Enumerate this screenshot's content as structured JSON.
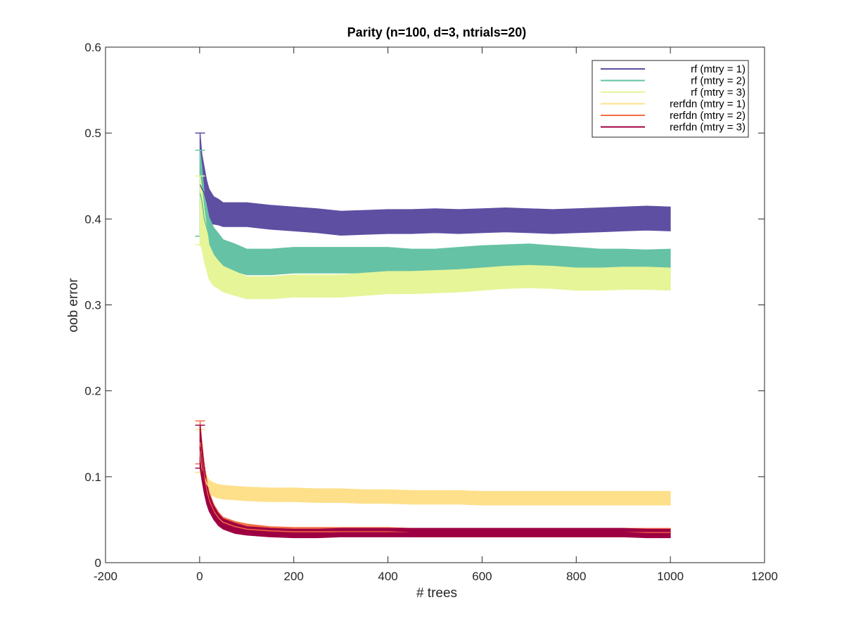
{
  "chart_data": {
    "type": "line",
    "title": "Parity (n=100, d=3, ntrials=20)",
    "xlabel": "# trees",
    "ylabel": "oob error",
    "xlim": [
      -200,
      1200
    ],
    "ylim": [
      0,
      0.6
    ],
    "xticks": [
      -200,
      0,
      200,
      400,
      600,
      800,
      1000,
      1200
    ],
    "xtick_labels": [
      "-200",
      "0",
      "200",
      "400",
      "600",
      "800",
      "1000",
      "1200"
    ],
    "yticks": [
      0,
      0.1,
      0.2,
      0.3,
      0.4,
      0.5,
      0.6
    ],
    "ytick_labels": [
      "0",
      "0.1",
      "0.2",
      "0.3",
      "0.4",
      "0.5",
      "0.6"
    ],
    "grid": false,
    "legend_position": "top-right",
    "error_bars": true,
    "series": [
      {
        "name": "rf (mtry = 1)",
        "color": "#5e4fa2",
        "x": [
          1,
          5,
          10,
          15,
          20,
          30,
          40,
          50,
          75,
          100,
          150,
          200,
          250,
          300,
          350,
          400,
          450,
          500,
          550,
          600,
          650,
          700,
          750,
          800,
          850,
          900,
          950,
          1000
        ],
        "mean": [
          0.44,
          0.435,
          0.43,
          0.42,
          0.415,
          0.41,
          0.408,
          0.405,
          0.405,
          0.405,
          0.402,
          0.4,
          0.398,
          0.395,
          0.396,
          0.397,
          0.397,
          0.398,
          0.397,
          0.398,
          0.399,
          0.398,
          0.397,
          0.398,
          0.399,
          0.4,
          0.401,
          0.4
        ],
        "err": [
          0.06,
          0.04,
          0.03,
          0.025,
          0.02,
          0.016,
          0.015,
          0.014,
          0.014,
          0.014,
          0.014,
          0.014,
          0.014,
          0.014,
          0.014,
          0.014,
          0.014,
          0.014,
          0.014,
          0.014,
          0.014,
          0.014,
          0.014,
          0.014,
          0.014,
          0.014,
          0.014,
          0.014
        ]
      },
      {
        "name": "rf (mtry = 2)",
        "color": "#66c2a5",
        "x": [
          1,
          5,
          10,
          15,
          20,
          30,
          40,
          50,
          75,
          100,
          150,
          200,
          250,
          300,
          350,
          400,
          450,
          500,
          550,
          600,
          650,
          700,
          750,
          800,
          850,
          900,
          950,
          1000
        ],
        "mean": [
          0.43,
          0.42,
          0.4,
          0.39,
          0.38,
          0.37,
          0.365,
          0.36,
          0.355,
          0.35,
          0.35,
          0.352,
          0.352,
          0.352,
          0.352,
          0.352,
          0.35,
          0.35,
          0.352,
          0.354,
          0.355,
          0.356,
          0.354,
          0.352,
          0.35,
          0.35,
          0.349,
          0.35
        ],
        "err": [
          0.05,
          0.04,
          0.03,
          0.025,
          0.022,
          0.02,
          0.018,
          0.016,
          0.016,
          0.015,
          0.015,
          0.015,
          0.015,
          0.015,
          0.015,
          0.015,
          0.015,
          0.015,
          0.015,
          0.015,
          0.015,
          0.015,
          0.015,
          0.015,
          0.015,
          0.015,
          0.015,
          0.015
        ]
      },
      {
        "name": "rf (mtry = 3)",
        "color": "#e6f598",
        "x": [
          1,
          5,
          10,
          15,
          20,
          30,
          40,
          50,
          75,
          100,
          150,
          200,
          250,
          300,
          350,
          400,
          450,
          500,
          550,
          600,
          650,
          700,
          750,
          800,
          850,
          900,
          950,
          1000
        ],
        "mean": [
          0.41,
          0.4,
          0.38,
          0.365,
          0.35,
          0.34,
          0.335,
          0.33,
          0.325,
          0.32,
          0.32,
          0.322,
          0.322,
          0.322,
          0.324,
          0.326,
          0.326,
          0.327,
          0.328,
          0.33,
          0.332,
          0.333,
          0.332,
          0.33,
          0.33,
          0.331,
          0.331,
          0.33
        ],
        "err": [
          0.04,
          0.035,
          0.03,
          0.025,
          0.02,
          0.018,
          0.016,
          0.015,
          0.014,
          0.013,
          0.013,
          0.013,
          0.013,
          0.013,
          0.013,
          0.013,
          0.013,
          0.013,
          0.013,
          0.013,
          0.013,
          0.013,
          0.013,
          0.013,
          0.013,
          0.013,
          0.013,
          0.013
        ]
      },
      {
        "name": "rerfdn (mtry = 1)",
        "color": "#fee08b",
        "x": [
          1,
          5,
          10,
          15,
          20,
          30,
          40,
          50,
          75,
          100,
          150,
          200,
          250,
          300,
          350,
          400,
          450,
          500,
          550,
          600,
          650,
          700,
          750,
          800,
          850,
          900,
          950,
          1000
        ],
        "mean": [
          0.13,
          0.11,
          0.1,
          0.092,
          0.088,
          0.085,
          0.083,
          0.082,
          0.081,
          0.08,
          0.079,
          0.079,
          0.078,
          0.078,
          0.077,
          0.077,
          0.076,
          0.076,
          0.076,
          0.075,
          0.075,
          0.075,
          0.075,
          0.075,
          0.075,
          0.075,
          0.075,
          0.075
        ],
        "err": [
          0.025,
          0.015,
          0.01,
          0.009,
          0.008,
          0.008,
          0.008,
          0.008,
          0.008,
          0.008,
          0.008,
          0.008,
          0.008,
          0.008,
          0.008,
          0.008,
          0.008,
          0.008,
          0.008,
          0.008,
          0.008,
          0.008,
          0.008,
          0.008,
          0.008,
          0.008,
          0.008,
          0.008
        ]
      },
      {
        "name": "rerfdn (mtry = 2)",
        "color": "#f46d43",
        "x": [
          1,
          5,
          10,
          15,
          20,
          30,
          40,
          50,
          75,
          100,
          150,
          200,
          250,
          300,
          350,
          400,
          450,
          500,
          550,
          600,
          650,
          700,
          750,
          800,
          850,
          900,
          950,
          1000
        ],
        "mean": [
          0.14,
          0.12,
          0.1,
          0.085,
          0.073,
          0.06,
          0.052,
          0.047,
          0.042,
          0.039,
          0.037,
          0.036,
          0.036,
          0.036,
          0.036,
          0.036,
          0.035,
          0.035,
          0.035,
          0.035,
          0.035,
          0.035,
          0.035,
          0.035,
          0.035,
          0.035,
          0.035,
          0.035
        ],
        "err": [
          0.025,
          0.02,
          0.015,
          0.012,
          0.01,
          0.008,
          0.007,
          0.006,
          0.006,
          0.006,
          0.005,
          0.005,
          0.005,
          0.005,
          0.005,
          0.005,
          0.005,
          0.005,
          0.005,
          0.005,
          0.005,
          0.005,
          0.005,
          0.005,
          0.005,
          0.005,
          0.005,
          0.005
        ]
      },
      {
        "name": "rerfdn (mtry = 3)",
        "color": "#9e0142",
        "x": [
          1,
          5,
          10,
          15,
          20,
          30,
          40,
          50,
          75,
          100,
          150,
          200,
          250,
          300,
          350,
          400,
          450,
          500,
          550,
          600,
          650,
          700,
          750,
          800,
          850,
          900,
          950,
          1000
        ],
        "mean": [
          0.135,
          0.115,
          0.095,
          0.08,
          0.07,
          0.058,
          0.05,
          0.045,
          0.04,
          0.037,
          0.035,
          0.034,
          0.034,
          0.035,
          0.035,
          0.035,
          0.035,
          0.035,
          0.035,
          0.035,
          0.035,
          0.035,
          0.035,
          0.035,
          0.035,
          0.035,
          0.034,
          0.034
        ],
        "err": [
          0.025,
          0.02,
          0.015,
          0.012,
          0.01,
          0.008,
          0.007,
          0.006,
          0.006,
          0.005,
          0.005,
          0.005,
          0.005,
          0.005,
          0.005,
          0.005,
          0.005,
          0.005,
          0.005,
          0.005,
          0.005,
          0.005,
          0.005,
          0.005,
          0.005,
          0.005,
          0.005,
          0.005
        ]
      }
    ]
  }
}
